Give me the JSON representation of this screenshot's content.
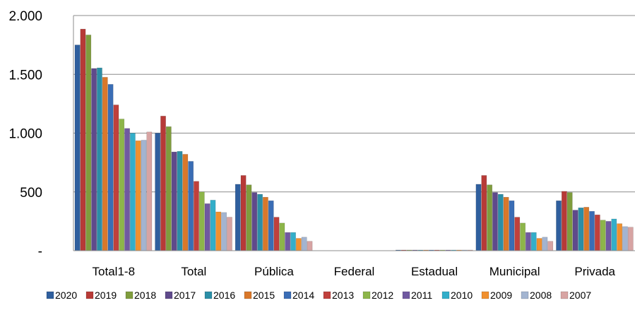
{
  "chart_data": {
    "type": "bar",
    "title": "",
    "xlabel": "",
    "ylabel": "",
    "ylim": [
      0,
      2000
    ],
    "yticks": [
      {
        "value": 0,
        "label": "-"
      },
      {
        "value": 500,
        "label": "500"
      },
      {
        "value": 1000,
        "label": "1.000"
      },
      {
        "value": 1500,
        "label": "1.500"
      },
      {
        "value": 2000,
        "label": "2.000"
      }
    ],
    "grid": true,
    "legend_position": "bottom",
    "categories": [
      "Total1-8",
      "Total",
      "Pública",
      "Federal",
      "Estadual",
      "Municipal",
      "Privada"
    ],
    "series": [
      {
        "name": "2020",
        "color": "#2f5f9e",
        "values": [
          1750,
          1000,
          565,
          0,
          2,
          565,
          425
        ]
      },
      {
        "name": "2019",
        "color": "#b73a37",
        "values": [
          1885,
          1145,
          640,
          0,
          2,
          640,
          505
        ]
      },
      {
        "name": "2018",
        "color": "#7f9c3d",
        "values": [
          1835,
          1055,
          560,
          0,
          2,
          560,
          495
        ]
      },
      {
        "name": "2017",
        "color": "#5f4a8b",
        "values": [
          1550,
          840,
          495,
          0,
          2,
          495,
          345
        ]
      },
      {
        "name": "2016",
        "color": "#2b8ea6",
        "values": [
          1555,
          845,
          480,
          0,
          2,
          480,
          365
        ]
      },
      {
        "name": "2015",
        "color": "#d9782a",
        "values": [
          1475,
          820,
          455,
          0,
          2,
          455,
          370
        ]
      },
      {
        "name": "2014",
        "color": "#3a6db5",
        "values": [
          1415,
          760,
          425,
          0,
          2,
          425,
          335
        ]
      },
      {
        "name": "2013",
        "color": "#c0403c",
        "values": [
          1240,
          590,
          285,
          0,
          2,
          285,
          305
        ]
      },
      {
        "name": "2012",
        "color": "#8db54a",
        "values": [
          1120,
          500,
          235,
          0,
          2,
          235,
          260
        ]
      },
      {
        "name": "2011",
        "color": "#7059a0",
        "values": [
          1040,
          400,
          155,
          0,
          2,
          155,
          250
        ]
      },
      {
        "name": "2010",
        "color": "#33aec9",
        "values": [
          1000,
          430,
          155,
          0,
          2,
          155,
          270
        ]
      },
      {
        "name": "2009",
        "color": "#f0902e",
        "values": [
          935,
          330,
          105,
          0,
          2,
          105,
          230
        ]
      },
      {
        "name": "2008",
        "color": "#a3b4d0",
        "values": [
          940,
          325,
          115,
          0,
          2,
          115,
          205
        ]
      },
      {
        "name": "2007",
        "color": "#d7a4a3",
        "values": [
          1010,
          285,
          80,
          0,
          2,
          80,
          200
        ]
      }
    ]
  }
}
